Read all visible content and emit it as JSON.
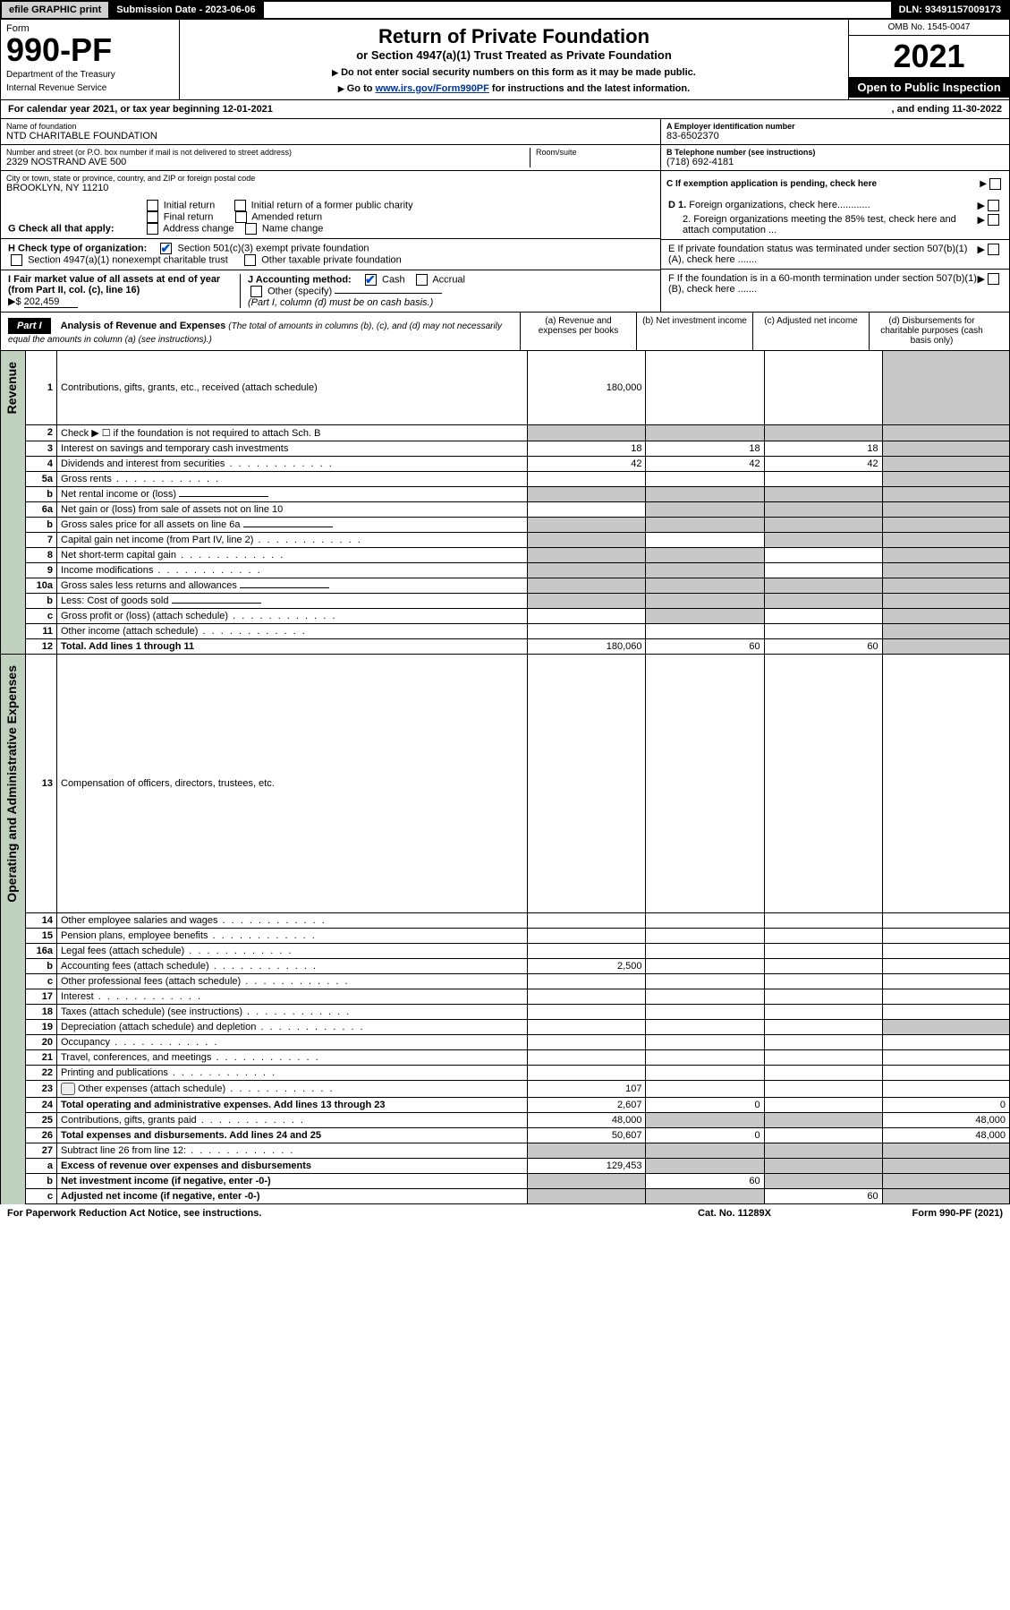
{
  "colors": {
    "black": "#000000",
    "white": "#ffffff",
    "link": "#003399",
    "side_bg": "#bfd0bf",
    "grey_cell": "#c8c8c8",
    "efile_bg": "#d0d0d0",
    "check_blue": "#0050cc"
  },
  "top_bar": {
    "efile": "efile GRAPHIC print",
    "submission_label": "Submission Date - 2023-06-06",
    "dln": "DLN: 93491157009173"
  },
  "header": {
    "form_label": "Form",
    "form_no": "990-PF",
    "dept": "Department of the Treasury",
    "irs": "Internal Revenue Service",
    "title": "Return of Private Foundation",
    "subtitle": "or Section 4947(a)(1) Trust Treated as Private Foundation",
    "note1_prefix": "Do not enter social security numbers on this form as it may be made public.",
    "note2_prefix": "Go to ",
    "note2_link": "www.irs.gov/Form990PF",
    "note2_suffix": " for instructions and the latest information.",
    "omb": "OMB No. 1545-0047",
    "year": "2021",
    "open": "Open to Public Inspection"
  },
  "cal_year": {
    "left": "For calendar year 2021, or tax year beginning 12-01-2021",
    "right": ", and ending 11-30-2022"
  },
  "entity": {
    "name_lbl": "Name of foundation",
    "name": "NTD CHARITABLE FOUNDATION",
    "addr_lbl": "Number and street (or P.O. box number if mail is not delivered to street address)",
    "addr": "2329 NOSTRAND AVE 500",
    "room_lbl": "Room/suite",
    "city_lbl": "City or town, state or province, country, and ZIP or foreign postal code",
    "city": "BROOKLYN, NY  11210",
    "ein_lbl": "A Employer identification number",
    "ein": "83-6502370",
    "phone_lbl": "B Telephone number (see instructions)",
    "phone": "(718) 692-4181",
    "c_lbl": "C If exemption application is pending, check here"
  },
  "checks": {
    "g_lbl": "G Check all that apply:",
    "g_opts": [
      "Initial return",
      "Initial return of a former public charity",
      "Final return",
      "Amended return",
      "Address change",
      "Name change"
    ],
    "h_lbl": "H Check type of organization:",
    "h_opt1": "Section 501(c)(3) exempt private foundation",
    "h_opt2": "Section 4947(a)(1) nonexempt charitable trust",
    "h_opt3": "Other taxable private foundation",
    "i_lbl": "I Fair market value of all assets at end of year (from Part II, col. (c), line 16)",
    "i_val": "202,459",
    "i_prefix": "$",
    "j_lbl": "J Accounting method:",
    "j_cash": "Cash",
    "j_accrual": "Accrual",
    "j_other": "Other (specify)",
    "j_note": "(Part I, column (d) must be on cash basis.)",
    "d1": "D 1. Foreign organizations, check here",
    "d2": "2. Foreign organizations meeting the 85% test, check here and attach computation ...",
    "e": "E  If private foundation status was terminated under section 507(b)(1)(A), check here .......",
    "f": "F  If the foundation is in a 60-month termination under section 507(b)(1)(B), check here ......."
  },
  "part1": {
    "hdr": "Part I",
    "title": "Analysis of Revenue and Expenses",
    "desc": "(The total of amounts in columns (b), (c), and (d) may not necessarily equal the amounts in column (a) (see instructions).)",
    "col_a": "(a)   Revenue and expenses per books",
    "col_b": "(b)   Net investment income",
    "col_c": "(c)   Adjusted net income",
    "col_d": "(d)  Disbursements for charitable purposes (cash basis only)",
    "side_rev": "Revenue",
    "side_exp": "Operating and Administrative Expenses"
  },
  "rows_rev": [
    {
      "n": "1",
      "t": "Contributions, gifts, grants, etc., received (attach schedule)",
      "a": "180,000",
      "b": "",
      "c": "",
      "d": "",
      "bg": false,
      "cg": false,
      "dg": true
    },
    {
      "n": "2",
      "t": "Check ▶ ☐ if the foundation is not required to attach Sch. B",
      "a": "",
      "b": "",
      "c": "",
      "d": "",
      "bg": true,
      "cg": true,
      "dg": true,
      "ag": true
    },
    {
      "n": "3",
      "t": "Interest on savings and temporary cash investments",
      "a": "18",
      "b": "18",
      "c": "18",
      "d": "",
      "dg": true
    },
    {
      "n": "4",
      "t": "Dividends and interest from securities",
      "a": "42",
      "b": "42",
      "c": "42",
      "d": "",
      "dg": true
    },
    {
      "n": "5a",
      "t": "Gross rents",
      "a": "",
      "b": "",
      "c": "",
      "d": "",
      "dg": true
    },
    {
      "n": "b",
      "t": "Net rental income or (loss)",
      "a": "",
      "b": "",
      "c": "",
      "d": "",
      "ag": true,
      "bg": true,
      "cg": true,
      "dg": true,
      "inset": true
    },
    {
      "n": "6a",
      "t": "Net gain or (loss) from sale of assets not on line 10",
      "a": "",
      "b": "",
      "c": "",
      "d": "",
      "bg": true,
      "cg": true,
      "dg": true
    },
    {
      "n": "b",
      "t": "Gross sales price for all assets on line 6a",
      "a": "",
      "b": "",
      "c": "",
      "d": "",
      "ag": true,
      "bg": true,
      "cg": true,
      "dg": true,
      "inset": true
    },
    {
      "n": "7",
      "t": "Capital gain net income (from Part IV, line 2)",
      "a": "",
      "b": "",
      "c": "",
      "d": "",
      "ag": true,
      "cg": true,
      "dg": true
    },
    {
      "n": "8",
      "t": "Net short-term capital gain",
      "a": "",
      "b": "",
      "c": "",
      "d": "",
      "ag": true,
      "bg": true,
      "dg": true
    },
    {
      "n": "9",
      "t": "Income modifications",
      "a": "",
      "b": "",
      "c": "",
      "d": "",
      "ag": true,
      "bg": true,
      "dg": true
    },
    {
      "n": "10a",
      "t": "Gross sales less returns and allowances",
      "a": "",
      "b": "",
      "c": "",
      "d": "",
      "ag": true,
      "bg": true,
      "cg": true,
      "dg": true,
      "inset": true
    },
    {
      "n": "b",
      "t": "Less: Cost of goods sold",
      "a": "",
      "b": "",
      "c": "",
      "d": "",
      "ag": true,
      "bg": true,
      "cg": true,
      "dg": true,
      "inset": true
    },
    {
      "n": "c",
      "t": "Gross profit or (loss) (attach schedule)",
      "a": "",
      "b": "",
      "c": "",
      "d": "",
      "bg": true,
      "dg": true
    },
    {
      "n": "11",
      "t": "Other income (attach schedule)",
      "a": "",
      "b": "",
      "c": "",
      "d": "",
      "dg": true
    },
    {
      "n": "12",
      "t": "Total. Add lines 1 through 11",
      "a": "180,060",
      "b": "60",
      "c": "60",
      "d": "",
      "dg": true,
      "bold": true
    }
  ],
  "rows_exp": [
    {
      "n": "13",
      "t": "Compensation of officers, directors, trustees, etc.",
      "a": "",
      "b": "",
      "c": "",
      "d": ""
    },
    {
      "n": "14",
      "t": "Other employee salaries and wages",
      "a": "",
      "b": "",
      "c": "",
      "d": ""
    },
    {
      "n": "15",
      "t": "Pension plans, employee benefits",
      "a": "",
      "b": "",
      "c": "",
      "d": ""
    },
    {
      "n": "16a",
      "t": "Legal fees (attach schedule)",
      "a": "",
      "b": "",
      "c": "",
      "d": ""
    },
    {
      "n": "b",
      "t": "Accounting fees (attach schedule)",
      "a": "2,500",
      "b": "",
      "c": "",
      "d": ""
    },
    {
      "n": "c",
      "t": "Other professional fees (attach schedule)",
      "a": "",
      "b": "",
      "c": "",
      "d": ""
    },
    {
      "n": "17",
      "t": "Interest",
      "a": "",
      "b": "",
      "c": "",
      "d": ""
    },
    {
      "n": "18",
      "t": "Taxes (attach schedule) (see instructions)",
      "a": "",
      "b": "",
      "c": "",
      "d": ""
    },
    {
      "n": "19",
      "t": "Depreciation (attach schedule) and depletion",
      "a": "",
      "b": "",
      "c": "",
      "d": "",
      "dg": true
    },
    {
      "n": "20",
      "t": "Occupancy",
      "a": "",
      "b": "",
      "c": "",
      "d": ""
    },
    {
      "n": "21",
      "t": "Travel, conferences, and meetings",
      "a": "",
      "b": "",
      "c": "",
      "d": ""
    },
    {
      "n": "22",
      "t": "Printing and publications",
      "a": "",
      "b": "",
      "c": "",
      "d": ""
    },
    {
      "n": "23",
      "t": "Other expenses (attach schedule)",
      "a": "107",
      "b": "",
      "c": "",
      "d": "",
      "icon": true
    },
    {
      "n": "24",
      "t": "Total operating and administrative expenses. Add lines 13 through 23",
      "a": "2,607",
      "b": "0",
      "c": "",
      "d": "0",
      "bold": true
    },
    {
      "n": "25",
      "t": "Contributions, gifts, grants paid",
      "a": "48,000",
      "b": "",
      "c": "",
      "d": "48,000",
      "bg": true,
      "cg": true
    },
    {
      "n": "26",
      "t": "Total expenses and disbursements. Add lines 24 and 25",
      "a": "50,607",
      "b": "0",
      "c": "",
      "d": "48,000",
      "bold": true
    }
  ],
  "rows_net": [
    {
      "n": "27",
      "t": "Subtract line 26 from line 12:",
      "a": "",
      "b": "",
      "c": "",
      "d": "",
      "ag": true,
      "bg": true,
      "cg": true,
      "dg": true
    },
    {
      "n": "a",
      "t": "Excess of revenue over expenses and disbursements",
      "a": "129,453",
      "b": "",
      "c": "",
      "d": "",
      "bg": true,
      "cg": true,
      "dg": true,
      "bold": true
    },
    {
      "n": "b",
      "t": "Net investment income (if negative, enter -0-)",
      "a": "",
      "b": "60",
      "c": "",
      "d": "",
      "ag": true,
      "cg": true,
      "dg": true,
      "bold": true
    },
    {
      "n": "c",
      "t": "Adjusted net income (if negative, enter -0-)",
      "a": "",
      "b": "",
      "c": "60",
      "d": "",
      "ag": true,
      "bg": true,
      "dg": true,
      "bold": true
    }
  ],
  "footer": {
    "left": "For Paperwork Reduction Act Notice, see instructions.",
    "mid": "Cat. No. 11289X",
    "right_form": "Form 990-PF (2021)"
  }
}
